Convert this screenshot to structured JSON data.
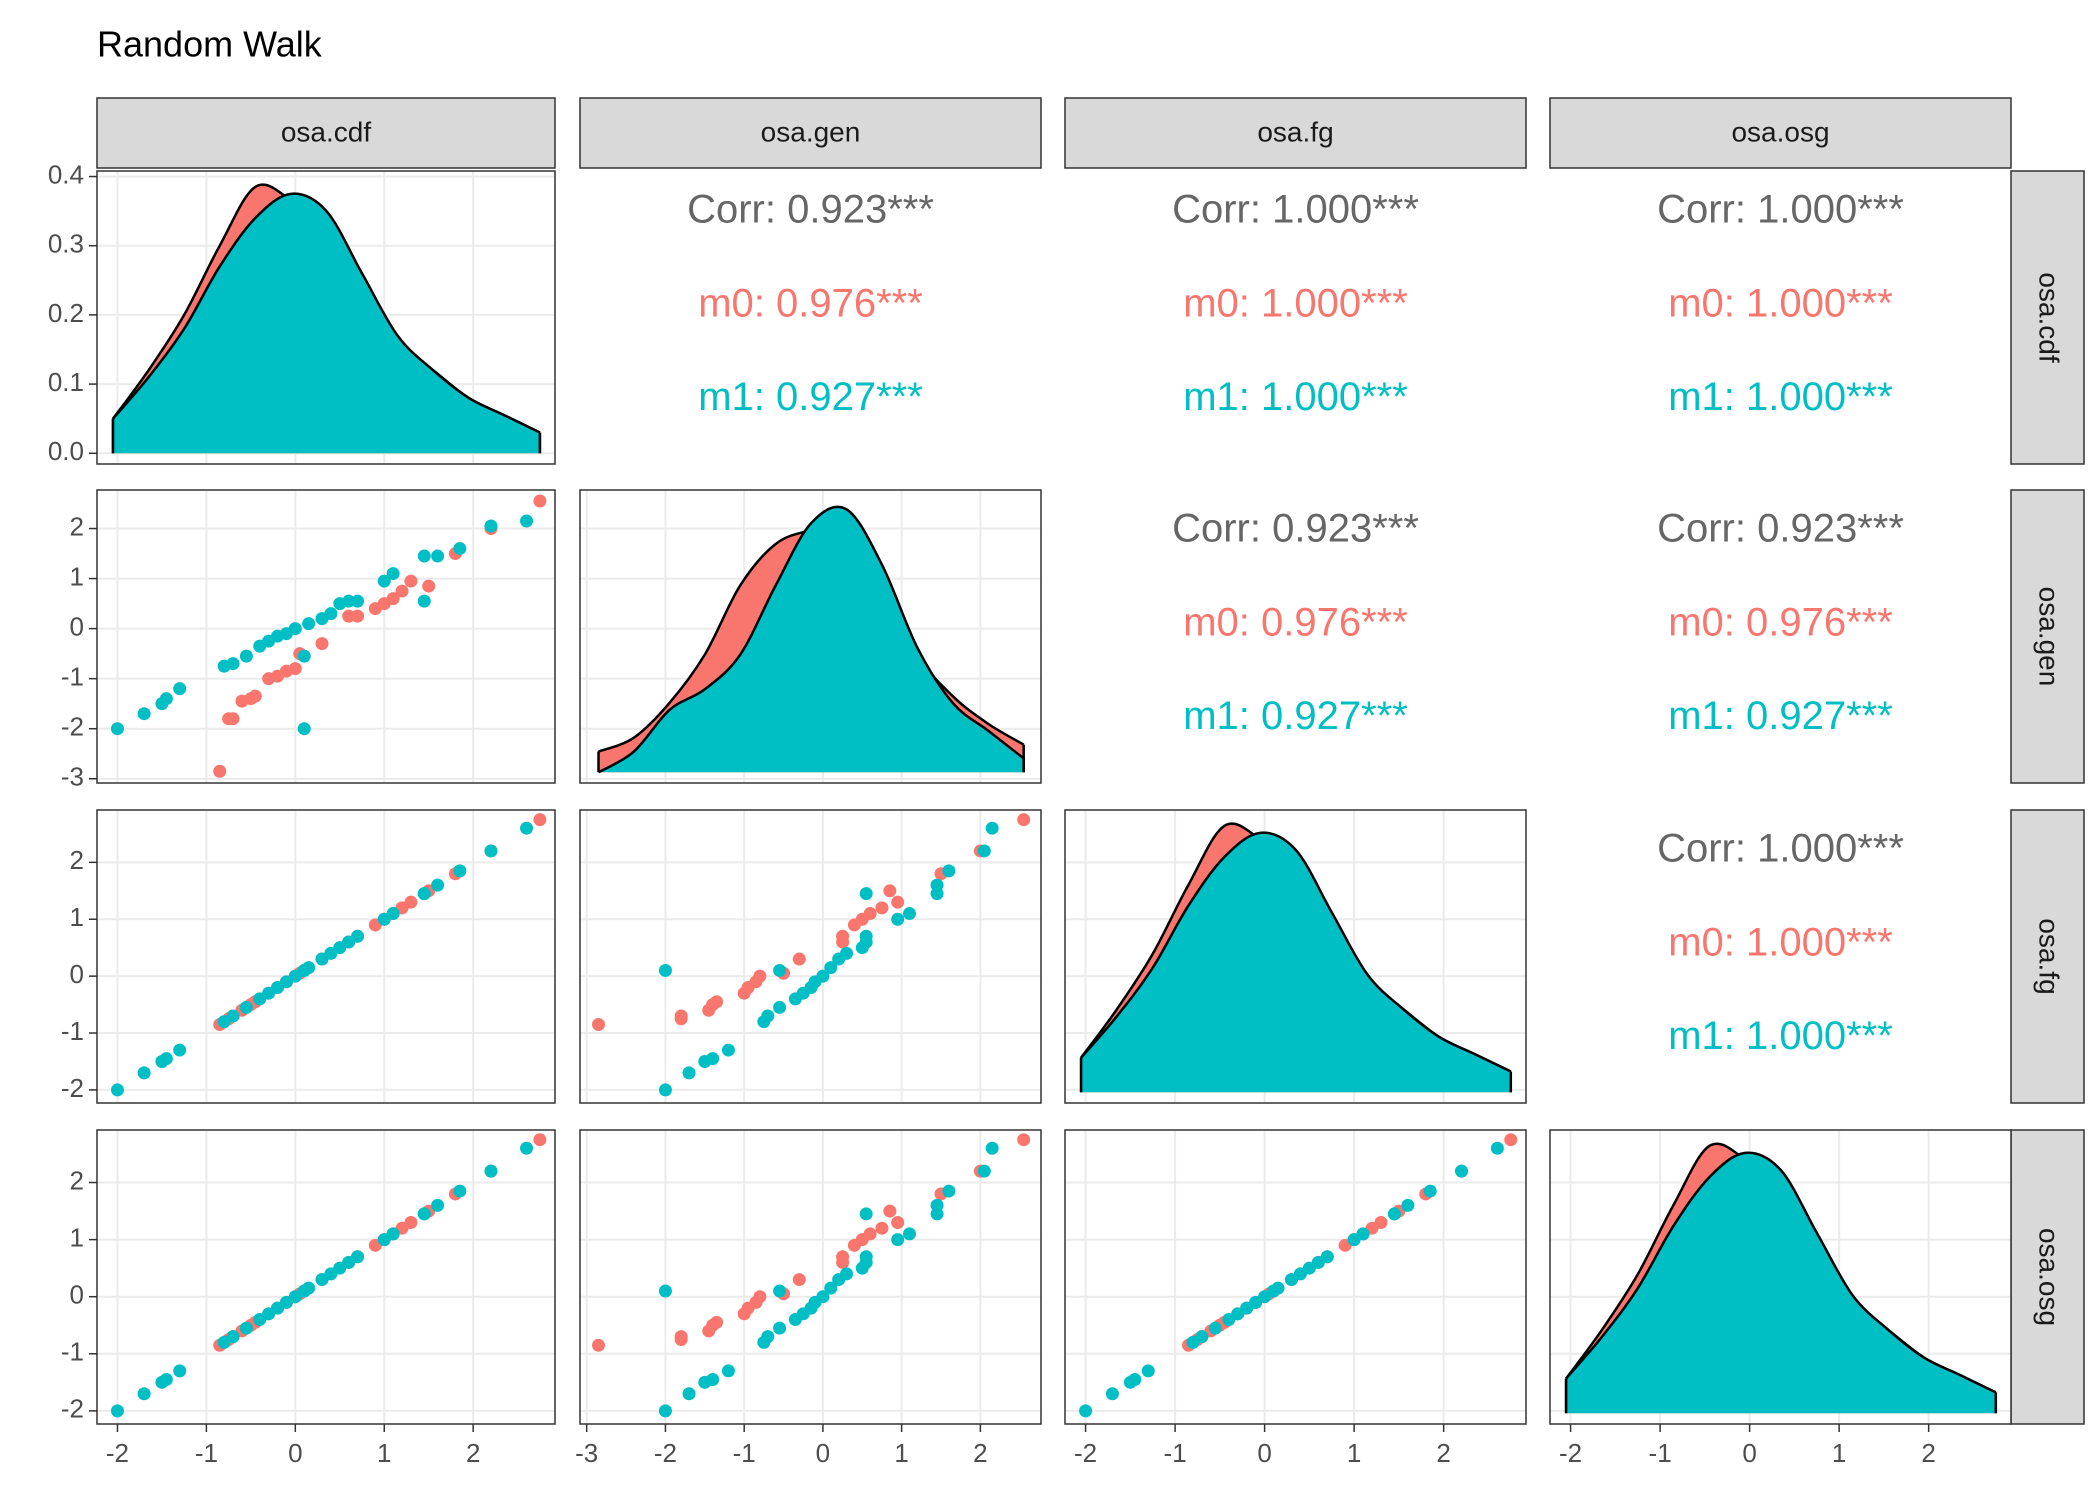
{
  "chart_data": {
    "type": "scatter-matrix",
    "title": "Random Walk",
    "variables": [
      "osa.cdf",
      "osa.gen",
      "osa.fg",
      "osa.osg"
    ],
    "axes": [
      {
        "lim": [
          -2.23,
          2.92
        ],
        "ticks": [
          -2,
          -1,
          0,
          1,
          2
        ]
      },
      {
        "lim": [
          -3.085,
          2.77
        ],
        "ticks": [
          -3,
          -2,
          -1,
          0,
          1,
          2
        ]
      },
      {
        "lim": [
          -2.23,
          2.92
        ],
        "ticks": [
          -2,
          -1,
          0,
          1,
          2
        ]
      },
      {
        "lim": [
          -2.23,
          2.92
        ],
        "ticks": [
          -2,
          -1,
          0,
          1,
          2
        ]
      }
    ],
    "series": [
      {
        "name": "m0",
        "color": "#F8766D",
        "values": [
          [
            -0.85,
            -0.75,
            -0.7,
            -0.6,
            -0.5,
            -0.45,
            -0.3,
            -0.2,
            -0.1,
            0.0,
            0.05,
            0.3,
            0.6,
            0.7,
            0.9,
            1.0,
            1.1,
            1.2,
            1.3,
            1.5,
            1.8,
            2.2,
            2.75
          ],
          [
            -2.85,
            -1.8,
            -1.8,
            -1.45,
            -1.4,
            -1.35,
            -1.0,
            -0.95,
            -0.85,
            -0.8,
            -0.5,
            -0.3,
            0.25,
            0.25,
            0.4,
            0.5,
            0.6,
            0.75,
            0.95,
            0.85,
            1.5,
            2.0,
            2.55
          ],
          [
            -0.85,
            -0.75,
            -0.7,
            -0.6,
            -0.5,
            -0.45,
            -0.3,
            -0.2,
            -0.1,
            0.0,
            0.05,
            0.3,
            0.6,
            0.7,
            0.9,
            1.0,
            1.1,
            1.2,
            1.3,
            1.5,
            1.8,
            2.2,
            2.75
          ],
          [
            -0.85,
            -0.75,
            -0.7,
            -0.6,
            -0.5,
            -0.45,
            -0.3,
            -0.2,
            -0.1,
            0.0,
            0.05,
            0.3,
            0.6,
            0.7,
            0.9,
            1.0,
            1.1,
            1.2,
            1.3,
            1.5,
            1.8,
            2.2,
            2.75
          ]
        ]
      },
      {
        "name": "m1",
        "color": "#00BFC4",
        "values": [
          [
            -2.0,
            -1.7,
            -1.5,
            -1.45,
            -1.3,
            -0.8,
            -0.7,
            -0.55,
            -0.4,
            -0.3,
            -0.2,
            -0.1,
            0.0,
            0.1,
            0.1,
            0.15,
            0.3,
            0.4,
            0.5,
            0.6,
            0.7,
            1.0,
            1.1,
            1.45,
            1.45,
            1.6,
            1.85,
            2.2,
            2.6
          ],
          [
            -2.0,
            -1.7,
            -1.5,
            -1.4,
            -1.2,
            -0.75,
            -0.7,
            -0.55,
            -0.35,
            -0.25,
            -0.15,
            -0.1,
            0.0,
            -0.55,
            -2.0,
            0.1,
            0.2,
            0.3,
            0.5,
            0.55,
            0.55,
            0.95,
            1.1,
            0.55,
            1.45,
            1.45,
            1.6,
            2.05,
            2.15
          ],
          [
            -2.0,
            -1.7,
            -1.5,
            -1.45,
            -1.3,
            -0.8,
            -0.7,
            -0.55,
            -0.4,
            -0.3,
            -0.2,
            -0.1,
            0.0,
            0.1,
            0.1,
            0.15,
            0.3,
            0.4,
            0.5,
            0.6,
            0.7,
            1.0,
            1.1,
            1.45,
            1.45,
            1.6,
            1.85,
            2.2,
            2.6
          ],
          [
            -2.0,
            -1.7,
            -1.5,
            -1.45,
            -1.3,
            -0.8,
            -0.7,
            -0.55,
            -0.4,
            -0.3,
            -0.2,
            -0.1,
            0.0,
            0.1,
            0.1,
            0.15,
            0.3,
            0.4,
            0.5,
            0.6,
            0.7,
            1.0,
            1.1,
            1.45,
            1.45,
            1.6,
            1.85,
            2.2,
            2.6
          ]
        ]
      }
    ],
    "density": {
      "ylim": [
        -0.0155,
        0.408
      ],
      "yticks": [
        {
          "value": 0,
          "label": "0.0"
        },
        0.1,
        0.2,
        0.3,
        0.4
      ],
      "x": [
        [
          -2.05,
          -1.65,
          -1.25,
          -0.85,
          -0.45,
          -0.05,
          0.35,
          0.75,
          1.15,
          1.55,
          1.95,
          2.35,
          2.75
        ],
        [
          -2.85,
          -2.4,
          -1.95,
          -1.5,
          -1.05,
          -0.6,
          -0.15,
          0.3,
          0.75,
          1.2,
          1.65,
          2.1,
          2.55
        ],
        [
          -2.05,
          -1.65,
          -1.25,
          -0.85,
          -0.45,
          -0.05,
          0.35,
          0.75,
          1.15,
          1.55,
          1.95,
          2.35,
          2.75
        ],
        [
          -2.05,
          -1.65,
          -1.25,
          -0.85,
          -0.45,
          -0.05,
          0.35,
          0.75,
          1.15,
          1.55,
          1.95,
          2.35,
          2.75
        ]
      ],
      "series": [
        [
          [
            0.05,
            0.12,
            0.2,
            0.3,
            0.385,
            0.365,
            0.31,
            0.23,
            0.16,
            0.12,
            0.08,
            0.055,
            0.03
          ],
          [
            0.03,
            0.05,
            0.1,
            0.17,
            0.27,
            0.33,
            0.35,
            0.36,
            0.28,
            0.17,
            0.11,
            0.07,
            0.04
          ],
          [
            0.05,
            0.12,
            0.2,
            0.3,
            0.385,
            0.365,
            0.31,
            0.23,
            0.16,
            0.12,
            0.08,
            0.055,
            0.03
          ],
          [
            0.05,
            0.12,
            0.2,
            0.3,
            0.385,
            0.365,
            0.31,
            0.23,
            0.16,
            0.12,
            0.08,
            0.055,
            0.03
          ]
        ],
        [
          [
            0.05,
            0.11,
            0.18,
            0.27,
            0.34,
            0.375,
            0.35,
            0.26,
            0.17,
            0.12,
            0.08,
            0.055,
            0.03
          ],
          [
            0.0,
            0.03,
            0.09,
            0.12,
            0.17,
            0.27,
            0.36,
            0.38,
            0.3,
            0.18,
            0.1,
            0.06,
            0.02
          ],
          [
            0.05,
            0.11,
            0.18,
            0.27,
            0.34,
            0.375,
            0.35,
            0.26,
            0.17,
            0.12,
            0.08,
            0.055,
            0.03
          ],
          [
            0.05,
            0.11,
            0.18,
            0.27,
            0.34,
            0.375,
            0.35,
            0.26,
            0.17,
            0.12,
            0.08,
            0.055,
            0.03
          ]
        ]
      ]
    },
    "correlations": [
      {
        "corr": "Corr: 0.923***",
        "groups": [
          "m0: 0.976***",
          "m1: 0.927***"
        ]
      },
      {
        "corr": "Corr: 1.000***",
        "groups": [
          "m0: 1.000***",
          "m1: 1.000***"
        ]
      },
      {
        "corr": "Corr: 1.000***",
        "groups": [
          "m0: 1.000***",
          "m1: 1.000***"
        ]
      },
      {
        "corr": "Corr: 0.923***",
        "groups": [
          "m0: 0.976***",
          "m1: 0.927***"
        ]
      },
      {
        "corr": "Corr: 0.923***",
        "groups": [
          "m0: 0.976***",
          "m1: 0.927***"
        ]
      },
      {
        "corr": "Corr: 1.000***",
        "groups": [
          "m0: 1.000***",
          "m1: 1.000***"
        ]
      }
    ]
  }
}
